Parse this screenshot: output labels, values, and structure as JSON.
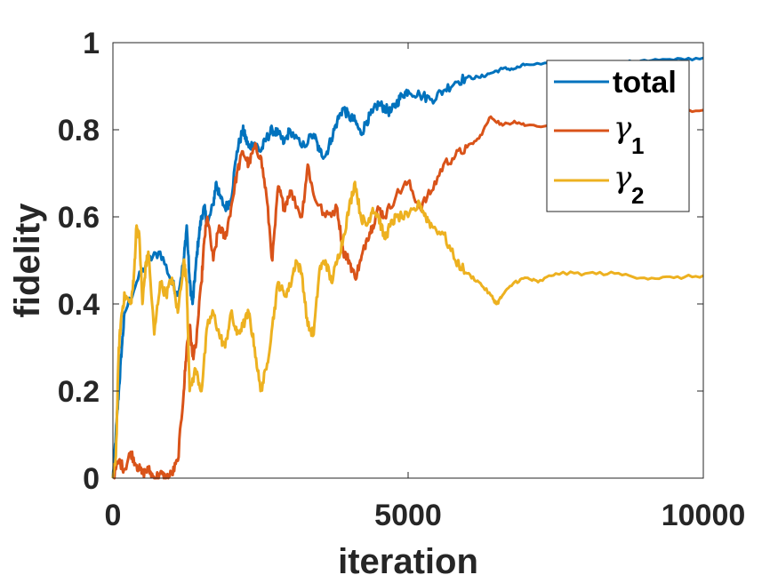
{
  "chart_data": {
    "type": "line",
    "title": "",
    "xlabel": "iteration",
    "ylabel": "fidelity",
    "xlim": [
      0,
      10000
    ],
    "ylim": [
      0,
      1
    ],
    "xticks": [
      0,
      5000,
      10000
    ],
    "xtick_labels": [
      "0",
      "5000",
      "10000"
    ],
    "yticks": [
      0,
      0.2,
      0.4,
      0.6,
      0.8,
      1
    ],
    "ytick_labels": [
      "0",
      "0.2",
      "0.4",
      "0.6",
      "0.8",
      "1"
    ],
    "grid": false,
    "legend_position": "top-right",
    "series": [
      {
        "name": "total",
        "legend_label": "total",
        "color": "#0072BD",
        "x": [
          0,
          50,
          100,
          150,
          200,
          400,
          600,
          800,
          1000,
          1100,
          1200,
          1250,
          1300,
          1350,
          1400,
          1450,
          1500,
          1550,
          1600,
          1700,
          1750,
          1800,
          1900,
          2000,
          2100,
          2200,
          2250,
          2300,
          2400,
          2500,
          2600,
          2700,
          2800,
          2900,
          3000,
          3200,
          3400,
          3500,
          3600,
          3700,
          3800,
          3900,
          4000,
          4100,
          4200,
          4300,
          4400,
          4500,
          4600,
          4700,
          4800,
          4900,
          5000,
          5200,
          5400,
          5600,
          5800,
          6000,
          6200,
          6400,
          6600,
          6800,
          7000,
          7500,
          8000,
          8500,
          9000,
          9500,
          10000
        ],
        "y": [
          0.0,
          0.1,
          0.2,
          0.3,
          0.38,
          0.45,
          0.5,
          0.52,
          0.45,
          0.42,
          0.5,
          0.58,
          0.45,
          0.4,
          0.48,
          0.55,
          0.6,
          0.62,
          0.58,
          0.63,
          0.68,
          0.65,
          0.62,
          0.64,
          0.75,
          0.8,
          0.78,
          0.76,
          0.77,
          0.75,
          0.78,
          0.8,
          0.79,
          0.77,
          0.8,
          0.76,
          0.79,
          0.75,
          0.74,
          0.78,
          0.82,
          0.85,
          0.83,
          0.82,
          0.79,
          0.82,
          0.84,
          0.86,
          0.85,
          0.84,
          0.86,
          0.88,
          0.89,
          0.88,
          0.87,
          0.89,
          0.91,
          0.92,
          0.92,
          0.93,
          0.94,
          0.94,
          0.95,
          0.95,
          0.95,
          0.95,
          0.96,
          0.96,
          0.965
        ]
      },
      {
        "name": "gamma1",
        "legend_label": "γ",
        "legend_subscript": "1",
        "color": "#D95319",
        "x": [
          0,
          100,
          200,
          300,
          400,
          500,
          600,
          700,
          800,
          900,
          1000,
          1100,
          1200,
          1250,
          1300,
          1350,
          1400,
          1500,
          1550,
          1600,
          1700,
          1800,
          1900,
          2000,
          2100,
          2200,
          2300,
          2400,
          2500,
          2600,
          2700,
          2800,
          2900,
          3000,
          3200,
          3300,
          3400,
          3600,
          3800,
          3900,
          4000,
          4100,
          4200,
          4300,
          4400,
          4500,
          4600,
          4800,
          5000,
          5200,
          5400,
          5600,
          5800,
          6000,
          6200,
          6400,
          6600,
          6800,
          7000,
          7500,
          8000,
          8500,
          9000,
          9500,
          10000
        ],
        "y": [
          0.0,
          0.04,
          0.02,
          0.06,
          0.03,
          0.01,
          0.02,
          0.0,
          0.01,
          0.0,
          0.01,
          0.04,
          0.2,
          0.3,
          0.35,
          0.28,
          0.3,
          0.45,
          0.55,
          0.6,
          0.5,
          0.58,
          0.55,
          0.62,
          0.7,
          0.75,
          0.72,
          0.76,
          0.74,
          0.65,
          0.5,
          0.67,
          0.62,
          0.66,
          0.6,
          0.72,
          0.65,
          0.6,
          0.62,
          0.52,
          0.5,
          0.46,
          0.5,
          0.55,
          0.58,
          0.62,
          0.6,
          0.65,
          0.68,
          0.62,
          0.66,
          0.72,
          0.74,
          0.76,
          0.78,
          0.83,
          0.81,
          0.82,
          0.81,
          0.81,
          0.82,
          0.82,
          0.83,
          0.84,
          0.845
        ]
      },
      {
        "name": "gamma2",
        "legend_label": "γ",
        "legend_subscript": "2",
        "color": "#EDB120",
        "x": [
          0,
          50,
          100,
          150,
          200,
          300,
          350,
          400,
          450,
          500,
          550,
          600,
          700,
          800,
          900,
          1000,
          1100,
          1200,
          1250,
          1300,
          1400,
          1500,
          1600,
          1700,
          1800,
          1900,
          2000,
          2100,
          2200,
          2300,
          2400,
          2500,
          2600,
          2700,
          2800,
          2900,
          3000,
          3100,
          3200,
          3300,
          3400,
          3500,
          3600,
          3700,
          3800,
          3900,
          4000,
          4100,
          4200,
          4300,
          4400,
          4500,
          4600,
          4700,
          4800,
          5000,
          5200,
          5300,
          5400,
          5600,
          5800,
          6000,
          6200,
          6400,
          6500,
          6600,
          6800,
          7000,
          7200,
          7500,
          8000,
          8500,
          9000,
          9500,
          10000
        ],
        "y": [
          0.0,
          0.05,
          0.3,
          0.38,
          0.42,
          0.4,
          0.45,
          0.58,
          0.55,
          0.4,
          0.48,
          0.52,
          0.33,
          0.45,
          0.42,
          0.46,
          0.38,
          0.5,
          0.45,
          0.2,
          0.25,
          0.2,
          0.35,
          0.38,
          0.33,
          0.3,
          0.38,
          0.33,
          0.35,
          0.38,
          0.3,
          0.2,
          0.25,
          0.35,
          0.45,
          0.42,
          0.44,
          0.5,
          0.47,
          0.35,
          0.33,
          0.48,
          0.5,
          0.45,
          0.5,
          0.55,
          0.62,
          0.68,
          0.6,
          0.58,
          0.62,
          0.6,
          0.55,
          0.58,
          0.6,
          0.6,
          0.63,
          0.6,
          0.58,
          0.56,
          0.5,
          0.47,
          0.45,
          0.42,
          0.4,
          0.42,
          0.45,
          0.46,
          0.45,
          0.47,
          0.47,
          0.47,
          0.46,
          0.46,
          0.465
        ]
      }
    ]
  }
}
